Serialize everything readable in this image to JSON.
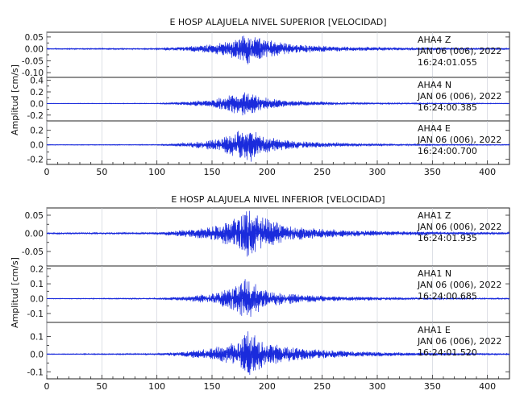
{
  "chart_data": [
    {
      "type": "line",
      "title": "E HOSP ALAJUELA NIVEL SUPERIOR [VELOCIDAD]",
      "ylabel": "Amplitud [cm/s]",
      "xlim": [
        0,
        420
      ],
      "xticks": [
        0,
        50,
        100,
        150,
        200,
        250,
        300,
        350,
        400
      ],
      "grid": true,
      "panels": [
        {
          "station": "AHA4",
          "component": "Z",
          "date": "JAN 06 (006), 2022",
          "time": "16:24:01.055",
          "ylim": [
            -0.12,
            0.07
          ],
          "yticks": [
            "0.05",
            "0.00",
            "-0.05",
            "-0.10"
          ],
          "ytick_values": [
            0.05,
            0.0,
            -0.05,
            -0.1
          ],
          "envelope": {
            "x": [
              0,
              100,
              125,
              150,
              165,
              175,
              180,
              184,
              190,
              200,
              215,
              240,
              270,
              320,
              360,
              420
            ],
            "amp": [
              0.002,
              0.003,
              0.01,
              0.02,
              0.035,
              0.05,
              0.06,
              0.07,
              0.055,
              0.04,
              0.025,
              0.015,
              0.01,
              0.006,
              0.004,
              0.003
            ]
          }
        },
        {
          "station": "AHA4",
          "component": "N",
          "date": "JAN 06 (006), 2022",
          "time": "16:24:00.385",
          "ylim": [
            -0.3,
            0.45
          ],
          "yticks": [
            "0.4",
            "0.2",
            "0.0",
            "-0.2"
          ],
          "ytick_values": [
            0.4,
            0.2,
            0.0,
            -0.2
          ],
          "envelope": {
            "x": [
              0,
              100,
              125,
              150,
              165,
              175,
              180,
              184,
              190,
              200,
              215,
              240,
              270,
              320,
              360,
              420
            ],
            "amp": [
              0.004,
              0.006,
              0.03,
              0.07,
              0.14,
              0.22,
              0.24,
              0.2,
              0.15,
              0.1,
              0.06,
              0.035,
              0.02,
              0.012,
              0.008,
              0.006
            ]
          }
        },
        {
          "station": "AHA4",
          "component": "E",
          "date": "JAN 06 (006), 2022",
          "time": "16:24:00.700",
          "ylim": [
            -0.27,
            0.33
          ],
          "yticks": [
            "0.2",
            "0.0",
            "-0.2"
          ],
          "ytick_values": [
            0.2,
            0.0,
            -0.2
          ],
          "envelope": {
            "x": [
              0,
              100,
              125,
              150,
              165,
              175,
              180,
              184,
              190,
              200,
              215,
              240,
              270,
              320,
              360,
              420
            ],
            "amp": [
              0.004,
              0.006,
              0.03,
              0.07,
              0.14,
              0.2,
              0.28,
              0.26,
              0.18,
              0.11,
              0.07,
              0.04,
              0.025,
              0.012,
              0.008,
              0.006
            ]
          }
        }
      ]
    },
    {
      "type": "line",
      "title": "E HOSP ALAJUELA NIVEL INFERIOR [VELOCIDAD]",
      "ylabel": "Amplitud [cm/s]",
      "xlim": [
        0,
        420
      ],
      "xticks": [
        0,
        50,
        100,
        150,
        200,
        250,
        300,
        350,
        400
      ],
      "grid": true,
      "panels": [
        {
          "station": "AHA1",
          "component": "Z",
          "date": "JAN 06 (006), 2022",
          "time": "16:24:01.935",
          "ylim": [
            -0.09,
            0.07
          ],
          "yticks": [
            "0.05",
            "0.00",
            "-0.05"
          ],
          "ytick_values": [
            0.05,
            0.0,
            -0.05
          ],
          "envelope": {
            "x": [
              0,
              100,
              125,
              150,
              165,
              175,
              180,
              184,
              190,
              200,
              215,
              240,
              270,
              320,
              360,
              420
            ],
            "amp": [
              0.002,
              0.003,
              0.01,
              0.02,
              0.035,
              0.05,
              0.06,
              0.075,
              0.055,
              0.04,
              0.025,
              0.015,
              0.01,
              0.006,
              0.004,
              0.003
            ]
          }
        },
        {
          "station": "AHA1",
          "component": "N",
          "date": "JAN 06 (006), 2022",
          "time": "16:24:00.685",
          "ylim": [
            -0.16,
            0.22
          ],
          "yticks": [
            "0.2",
            "0.1",
            "0.0",
            "-0.1"
          ],
          "ytick_values": [
            0.2,
            0.1,
            0.0,
            -0.1
          ],
          "envelope": {
            "x": [
              0,
              100,
              125,
              150,
              165,
              175,
              180,
              184,
              190,
              200,
              215,
              240,
              270,
              320,
              360,
              420
            ],
            "amp": [
              0.002,
              0.004,
              0.015,
              0.035,
              0.07,
              0.12,
              0.15,
              0.14,
              0.1,
              0.06,
              0.04,
              0.025,
              0.015,
              0.008,
              0.005,
              0.004
            ]
          }
        },
        {
          "station": "AHA1",
          "component": "E",
          "date": "JAN 06 (006), 2022",
          "time": "16:24:01.520",
          "ylim": [
            -0.14,
            0.18
          ],
          "yticks": [
            "0.1",
            "0.0",
            "-0.1"
          ],
          "ytick_values": [
            0.1,
            0.0,
            -0.1
          ],
          "envelope": {
            "x": [
              0,
              100,
              125,
              150,
              165,
              175,
              180,
              184,
              190,
              200,
              215,
              240,
              270,
              320,
              360,
              420
            ],
            "amp": [
              0.002,
              0.004,
              0.015,
              0.035,
              0.06,
              0.09,
              0.12,
              0.14,
              0.1,
              0.07,
              0.045,
              0.03,
              0.018,
              0.01,
              0.006,
              0.004
            ]
          }
        }
      ]
    }
  ],
  "colors": {
    "trace": "#1a2bdc",
    "frame": "#222222",
    "grid": "#c7ccd6",
    "text": "#111111"
  }
}
